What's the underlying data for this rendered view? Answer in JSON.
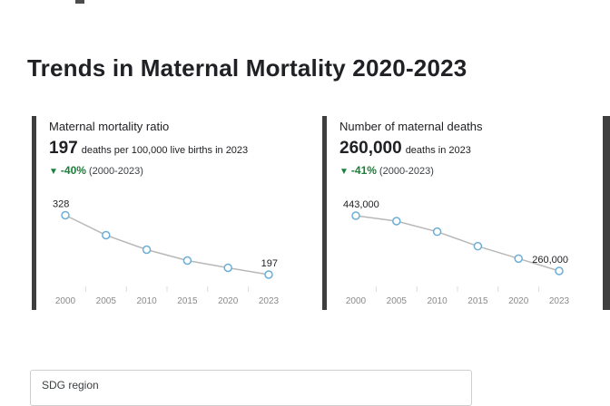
{
  "page": {
    "title": "Trends in Maternal Mortality 2020-2023"
  },
  "cards": [
    {
      "title": "Maternal mortality ratio",
      "stat": "197",
      "stat_suffix": "deaths per 100,000 live births in 2023",
      "change_arrow": "▼",
      "change": "-40%",
      "change_period": "(2000-2023)"
    },
    {
      "title": "Number of maternal deaths",
      "stat": "260,000",
      "stat_suffix": "deaths in 2023",
      "change_arrow": "▼",
      "change": "-41%",
      "change_period": "(2000-2023)"
    }
  ],
  "footer": {
    "label": "SDG region"
  },
  "colors": {
    "accent_green": "#188038",
    "card_border": "#3f3f3f",
    "marker_blue": "#6baed6",
    "line_gray": "#b8b8b8"
  },
  "chart_data": [
    {
      "type": "line",
      "title": "Maternal mortality ratio",
      "x": [
        2000,
        2005,
        2010,
        2015,
        2020,
        2023
      ],
      "values": [
        328,
        284,
        252,
        228,
        212,
        197
      ],
      "first_label": "328",
      "last_label": "197",
      "xlabel": "",
      "ylabel": "deaths per 100,000 live births",
      "ylim": [
        185,
        345
      ],
      "grid": false,
      "legend": "none"
    },
    {
      "type": "line",
      "title": "Number of maternal deaths",
      "x": [
        2000,
        2005,
        2010,
        2015,
        2020,
        2023
      ],
      "values": [
        443000,
        425000,
        390000,
        342000,
        301000,
        260000
      ],
      "first_label": "443,000",
      "last_label": "260,000",
      "xlabel": "",
      "ylabel": "maternal deaths",
      "ylim": [
        230000,
        470000
      ],
      "grid": false,
      "legend": "none"
    }
  ]
}
